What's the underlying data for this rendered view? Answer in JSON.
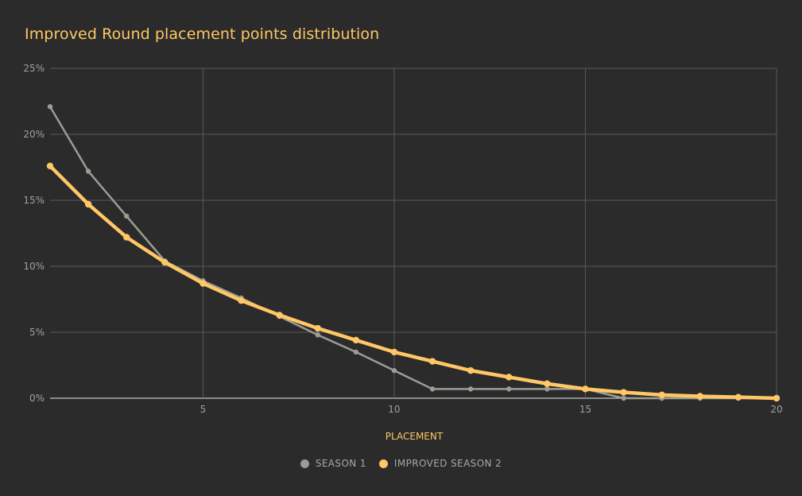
{
  "chart_data": {
    "type": "line",
    "title": "Improved Round placement points distribution",
    "xlabel": "PLACEMENT",
    "ylabel": "",
    "xlim": [
      1,
      20
    ],
    "ylim": [
      0,
      25
    ],
    "x_ticks": [
      "5",
      "10",
      "15",
      "20"
    ],
    "y_ticks": [
      "0%",
      "5%",
      "10%",
      "15%",
      "20%",
      "25%"
    ],
    "grid": true,
    "legend_position": "bottom",
    "x": [
      1,
      2,
      3,
      4,
      5,
      6,
      7,
      8,
      9,
      10,
      11,
      12,
      13,
      14,
      15,
      16,
      17,
      18,
      19,
      20
    ],
    "series": [
      {
        "name": "SEASON 1",
        "color": "#9c9c93",
        "values": [
          22.1,
          17.2,
          13.8,
          10.4,
          8.9,
          7.6,
          6.2,
          4.8,
          3.5,
          2.1,
          0.7,
          0.7,
          0.7,
          0.7,
          0.7,
          0.0,
          0.0,
          0.0,
          0.0,
          0.0
        ]
      },
      {
        "name": "IMPROVED SEASON 2",
        "color": "#ffc765",
        "values": [
          17.6,
          14.7,
          12.2,
          10.3,
          8.7,
          7.4,
          6.3,
          5.3,
          4.4,
          3.5,
          2.8,
          2.1,
          1.6,
          1.1,
          0.7,
          0.45,
          0.25,
          0.15,
          0.08,
          0.0
        ]
      }
    ]
  }
}
